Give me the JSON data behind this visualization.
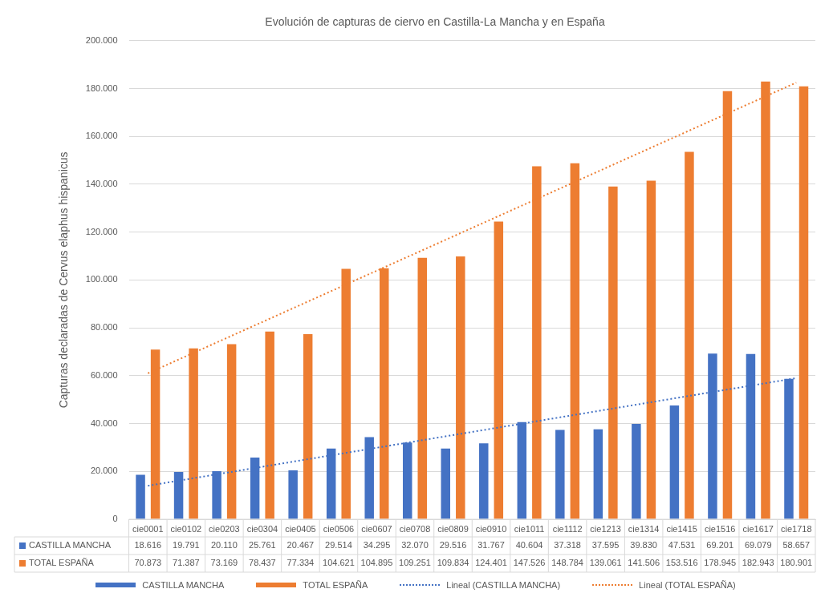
{
  "chart_data": {
    "type": "bar",
    "title": "Evolución de capturas de ciervo en Castilla-La Mancha y en España",
    "ylabel": "Capturas declaradas de Cervus elaphus hispanicus",
    "categories": [
      "cie0001",
      "cie0102",
      "cie0203",
      "cie0304",
      "cie0405",
      "cie0506",
      "cie0607",
      "cie0708",
      "cie0809",
      "cie0910",
      "cie1011",
      "cie1112",
      "cie1213",
      "cie1314",
      "cie1415",
      "cie1516",
      "cie1617",
      "cie1718"
    ],
    "series": [
      {
        "name": "CASTILLA MANCHA",
        "color": "#4472c4",
        "values": [
          18616,
          19791,
          20110,
          25761,
          20467,
          29514,
          34295,
          32070,
          29516,
          31767,
          40604,
          37318,
          37595,
          39830,
          47531,
          69201,
          69079,
          58657
        ],
        "value_labels": [
          "18.616",
          "19.791",
          "20.110",
          "25.761",
          "20.467",
          "29.514",
          "34.295",
          "32.070",
          "29.516",
          "31.767",
          "40.604",
          "37.318",
          "37.595",
          "39.830",
          "47.531",
          "69.201",
          "69.079",
          "58.657"
        ]
      },
      {
        "name": "TOTAL ESPAÑA",
        "color": "#ed7d31",
        "values": [
          70873,
          71387,
          73169,
          78437,
          77334,
          104621,
          104895,
          109251,
          109834,
          124401,
          147526,
          148784,
          139061,
          141506,
          153516,
          178945,
          182943,
          180901
        ],
        "value_labels": [
          "70.873",
          "71.387",
          "73.169",
          "78.437",
          "77.334",
          "104.621",
          "104.895",
          "109.251",
          "109.834",
          "124.401",
          "147.526",
          "148.784",
          "139.061",
          "141.506",
          "153.516",
          "178.945",
          "182.943",
          "180.901"
        ]
      },
      {
        "name": "Lineal (CASTILLA MANCHA)",
        "type": "line",
        "color": "#4472c4",
        "line_style": "dotted",
        "marker": "none",
        "x": [
          "cie0001",
          "cie1718"
        ],
        "values": [
          14000,
          59000
        ]
      },
      {
        "name": "Lineal (TOTAL ESPAÑA)",
        "type": "line",
        "color": "#ed7d31",
        "line_style": "dotted",
        "marker": "none",
        "x": [
          "cie0001",
          "cie1718"
        ],
        "values": [
          61000,
          182500
        ]
      }
    ],
    "ylim": [
      0,
      200000
    ],
    "yticks": [
      {
        "value": 0,
        "label": "0"
      },
      {
        "value": 20000,
        "label": "20.000"
      },
      {
        "value": 40000,
        "label": "40.000"
      },
      {
        "value": 60000,
        "label": "60.000"
      },
      {
        "value": 80000,
        "label": "80.000"
      },
      {
        "value": 100000,
        "label": "100.000"
      },
      {
        "value": 120000,
        "label": "120.000"
      },
      {
        "value": 140000,
        "label": "140.000"
      },
      {
        "value": 160000,
        "label": "160.000"
      },
      {
        "value": 180000,
        "label": "180.000"
      },
      {
        "value": 200000,
        "label": "200.000"
      }
    ],
    "grid": "y",
    "legend": "bottom"
  }
}
